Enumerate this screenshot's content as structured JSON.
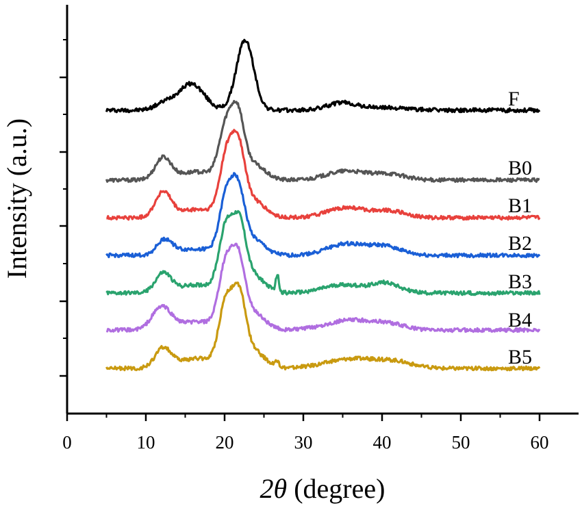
{
  "chart_data": {
    "type": "line",
    "title": "",
    "xlabel_symbol": "2θ",
    "xlabel_rest": " (degree)",
    "ylabel": "Intensity (a.u.)",
    "xlim": [
      0,
      65
    ],
    "xticks": [
      0,
      10,
      20,
      30,
      40,
      50,
      60
    ],
    "y_ticks_labeled": false,
    "grid": false,
    "legend": "none",
    "series": [
      {
        "name": "F",
        "color": "#000000",
        "x_range": [
          5,
          60
        ],
        "baseline": 1.0,
        "peaks": [
          [
            12.5,
            0.08,
            1.3
          ],
          [
            15.8,
            0.3,
            1.6
          ],
          [
            22.6,
            0.8,
            1.1
          ],
          [
            34.8,
            0.08,
            1.8
          ],
          [
            40,
            0.03,
            3
          ]
        ]
      },
      {
        "name": "B0",
        "color": "#555555",
        "x_range": [
          5,
          60
        ],
        "baseline": 1.0,
        "peaks": [
          [
            12.2,
            0.26,
            1.0
          ],
          [
            20.2,
            0.62,
            0.9
          ],
          [
            21.7,
            0.66,
            0.8
          ],
          [
            23.5,
            0.2,
            1.5
          ],
          [
            16.5,
            0.1,
            2.5
          ],
          [
            35.5,
            0.11,
            2.5
          ],
          [
            41,
            0.07,
            2.0
          ]
        ]
      },
      {
        "name": "B1",
        "color": "#e8413c",
        "x_range": [
          5,
          60
        ],
        "baseline": 1.0,
        "peaks": [
          [
            12.2,
            0.3,
            1.0
          ],
          [
            20.3,
            0.74,
            0.9
          ],
          [
            21.8,
            0.69,
            0.8
          ],
          [
            23.5,
            0.22,
            1.5
          ],
          [
            16.5,
            0.1,
            2.5
          ],
          [
            35.5,
            0.12,
            2.5
          ],
          [
            41,
            0.08,
            2.0
          ]
        ]
      },
      {
        "name": "B2",
        "color": "#1a5fd6",
        "x_range": [
          5,
          60
        ],
        "baseline": 1.0,
        "peaks": [
          [
            12.4,
            0.18,
            1.0
          ],
          [
            20.3,
            0.72,
            0.9
          ],
          [
            21.8,
            0.62,
            0.8
          ],
          [
            23.5,
            0.2,
            1.5
          ],
          [
            16.5,
            0.08,
            2.5
          ],
          [
            35.5,
            0.14,
            2.5
          ],
          [
            40.5,
            0.1,
            2.0
          ]
        ]
      },
      {
        "name": "B3",
        "color": "#2aa36e",
        "x_range": [
          5,
          60
        ],
        "baseline": 1.0,
        "peaks": [
          [
            12.2,
            0.23,
            1.0
          ],
          [
            20.2,
            0.77,
            0.9
          ],
          [
            21.9,
            0.7,
            0.8
          ],
          [
            23.5,
            0.22,
            1.5
          ],
          [
            16.5,
            0.1,
            2.5
          ],
          [
            26.7,
            0.2,
            0.2
          ],
          [
            35.0,
            0.1,
            2.5
          ],
          [
            40.5,
            0.12,
            1.8
          ]
        ]
      },
      {
        "name": "B4",
        "color": "#b06ee0",
        "x_range": [
          5,
          60
        ],
        "baseline": 1.0,
        "peaks": [
          [
            12.0,
            0.27,
            1.2
          ],
          [
            20.2,
            0.78,
            0.9
          ],
          [
            21.8,
            0.7,
            0.8
          ],
          [
            23.5,
            0.22,
            1.5
          ],
          [
            16.5,
            0.1,
            2.5
          ],
          [
            36.0,
            0.12,
            3.0
          ],
          [
            41,
            0.06,
            2.0
          ]
        ]
      },
      {
        "name": "B5",
        "color": "#c99a10",
        "x_range": [
          5,
          60
        ],
        "baseline": 1.0,
        "peaks": [
          [
            12.2,
            0.23,
            1.0
          ],
          [
            20.2,
            0.78,
            0.9
          ],
          [
            21.9,
            0.73,
            0.8
          ],
          [
            23.5,
            0.22,
            1.5
          ],
          [
            16.5,
            0.12,
            2.5
          ],
          [
            26.6,
            0.06,
            0.3
          ],
          [
            36.5,
            0.12,
            3.5
          ],
          [
            42,
            0.06,
            2.0
          ]
        ]
      }
    ]
  }
}
